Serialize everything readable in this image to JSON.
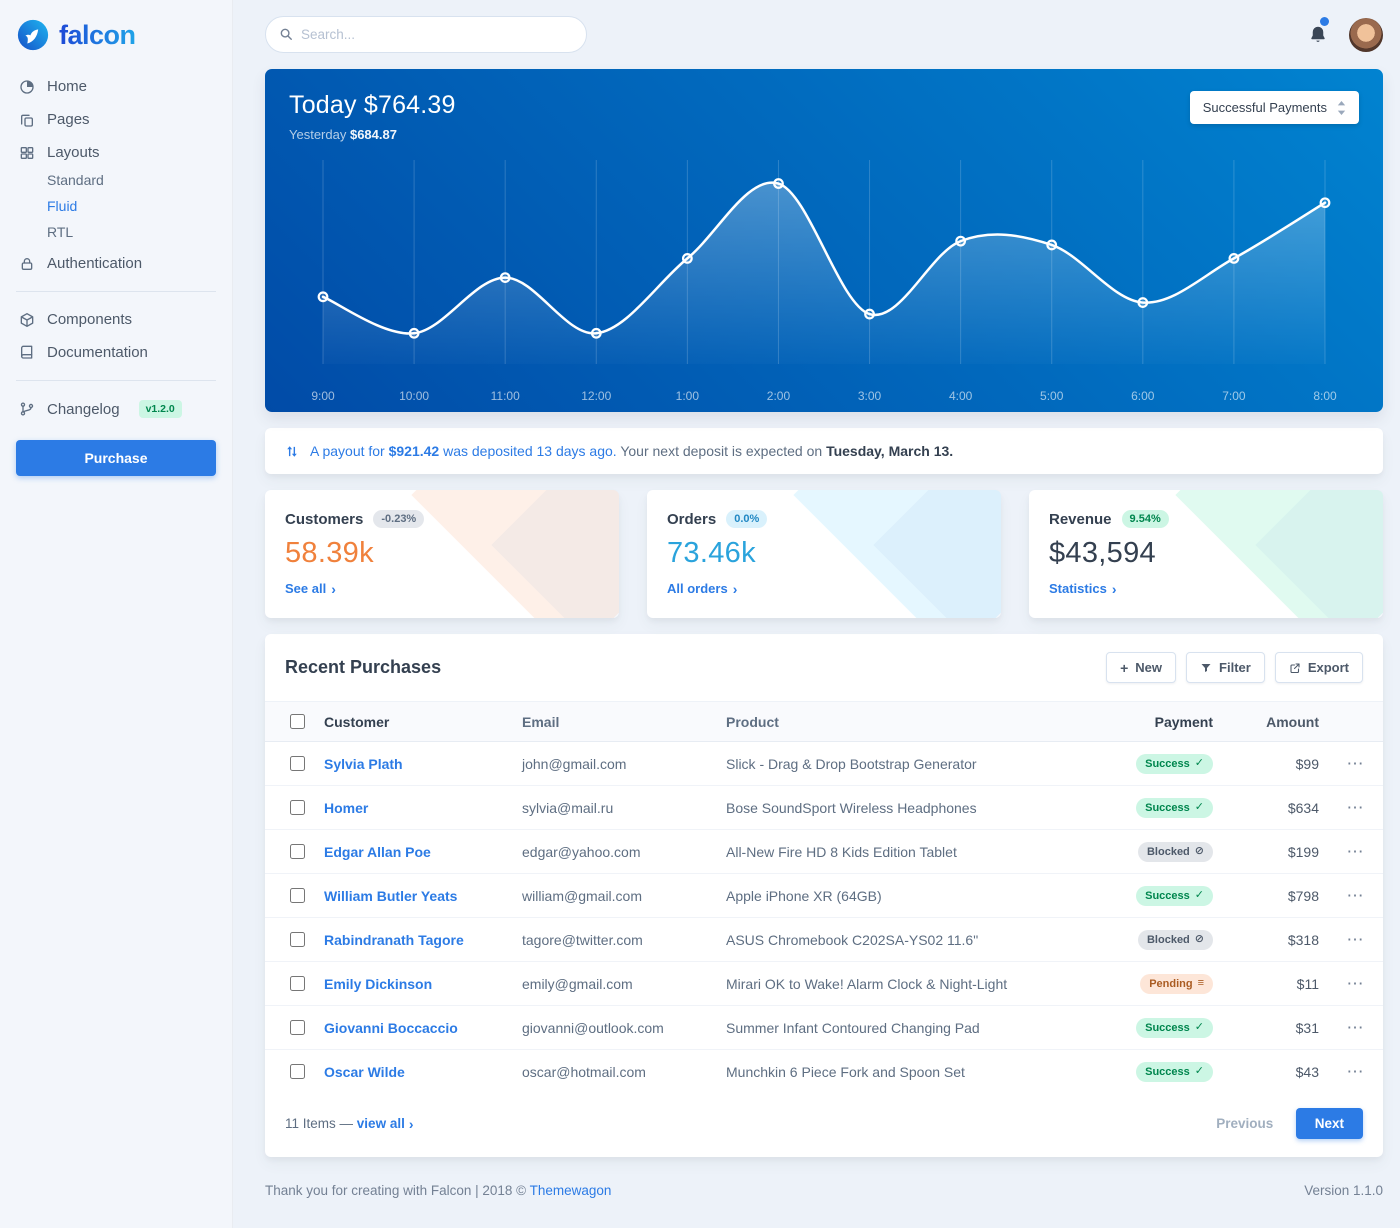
{
  "brand": {
    "name": "falcon"
  },
  "topbar": {
    "search_placeholder": "Search..."
  },
  "sidebar": {
    "home": "Home",
    "pages": "Pages",
    "layouts": "Layouts",
    "standard": "Standard",
    "fluid": "Fluid",
    "rtl": "RTL",
    "authentication": "Authentication",
    "components": "Components",
    "documentation": "Documentation",
    "changelog": "Changelog",
    "version_badge": "v1.2.0",
    "purchase": "Purchase"
  },
  "hero": {
    "dropdown_selected": "Successful Payments"
  },
  "chart_data": {
    "type": "line",
    "title": "Today $764.39",
    "subtitle_label": "Yesterday",
    "subtitle_value": "$684.87",
    "x": [
      "9:00",
      "10:00",
      "11:00",
      "12:00",
      "1:00",
      "2:00",
      "3:00",
      "4:00",
      "5:00",
      "6:00",
      "7:00",
      "8:00"
    ],
    "values": [
      35,
      16,
      45,
      16,
      55,
      94,
      26,
      64,
      62,
      32,
      55,
      84
    ],
    "ylim": [
      0,
      100
    ],
    "grid": "vertical",
    "legend": null,
    "line_color": "#ffffff",
    "area_fill": "white-gradient",
    "markers": true
  },
  "payout": {
    "link_prefix": "A payout for",
    "amount": "$921.42",
    "link_suffix": "was deposited 13 days ago.",
    "rest": "Your next deposit is expected on",
    "date": "Tuesday, March 13."
  },
  "stats": [
    {
      "title": "Customers",
      "badge": "-0.23%",
      "value": "58.39k",
      "link": "See all"
    },
    {
      "title": "Orders",
      "badge": "0.0%",
      "value": "73.46k",
      "link": "All orders"
    },
    {
      "title": "Revenue",
      "badge": "9.54%",
      "value": "$43,594",
      "link": "Statistics"
    }
  ],
  "table": {
    "title": "Recent Purchases",
    "buttons": {
      "new": "New",
      "filter": "Filter",
      "export": "Export"
    },
    "headers": [
      "Customer",
      "Email",
      "Product",
      "Payment",
      "Amount"
    ],
    "rows": [
      {
        "customer": "Sylvia Plath",
        "email": "john@gmail.com",
        "product": "Slick - Drag & Drop Bootstrap Generator",
        "status": "Success",
        "variant": "success",
        "amount": "$99"
      },
      {
        "customer": "Homer",
        "email": "sylvia@mail.ru",
        "product": "Bose SoundSport Wireless Headphones",
        "status": "Success",
        "variant": "success",
        "amount": "$634"
      },
      {
        "customer": "Edgar Allan Poe",
        "email": "edgar@yahoo.com",
        "product": "All-New Fire HD 8 Kids Edition Tablet",
        "status": "Blocked",
        "variant": "blocked",
        "amount": "$199"
      },
      {
        "customer": "William Butler Yeats",
        "email": "william@gmail.com",
        "product": "Apple iPhone XR (64GB)",
        "status": "Success",
        "variant": "success",
        "amount": "$798"
      },
      {
        "customer": "Rabindranath Tagore",
        "email": "tagore@twitter.com",
        "product": "ASUS Chromebook C202SA-YS02 11.6\"",
        "status": "Blocked",
        "variant": "blocked",
        "amount": "$318"
      },
      {
        "customer": "Emily Dickinson",
        "email": "emily@gmail.com",
        "product": "Mirari OK to Wake! Alarm Clock & Night-Light",
        "status": "Pending",
        "variant": "pending",
        "amount": "$11"
      },
      {
        "customer": "Giovanni Boccaccio",
        "email": "giovanni@outlook.com",
        "product": "Summer Infant Contoured Changing Pad",
        "status": "Success",
        "variant": "success",
        "amount": "$31"
      },
      {
        "customer": "Oscar Wilde",
        "email": "oscar@hotmail.com",
        "product": "Munchkin 6 Piece Fork and Spoon Set",
        "status": "Success",
        "variant": "success",
        "amount": "$43"
      }
    ],
    "footer": {
      "items": "11 Items —",
      "view_all": "view all",
      "previous": "Previous",
      "next": "Next"
    }
  },
  "footer": {
    "left_prefix": "Thank you for creating with Falcon | 2018 ©",
    "brand_link": "Themewagon",
    "version": "Version 1.1.0"
  },
  "icons": {
    "status_glyphs": {
      "success": "✓",
      "blocked": "⊘",
      "pending": "≡"
    },
    "chevron_right": "›",
    "ellipsis": "⋯",
    "plus": "+"
  },
  "colors": {
    "primary": "#2c7be5",
    "hero_gradient": [
      "#014ba7",
      "#0183d0"
    ],
    "customers_value": "#f0813c",
    "orders_value": "#2aa3dc",
    "revenue_value": "#344050",
    "success_badge_text": "#00864e",
    "pending_badge_text": "#aa5c22"
  }
}
